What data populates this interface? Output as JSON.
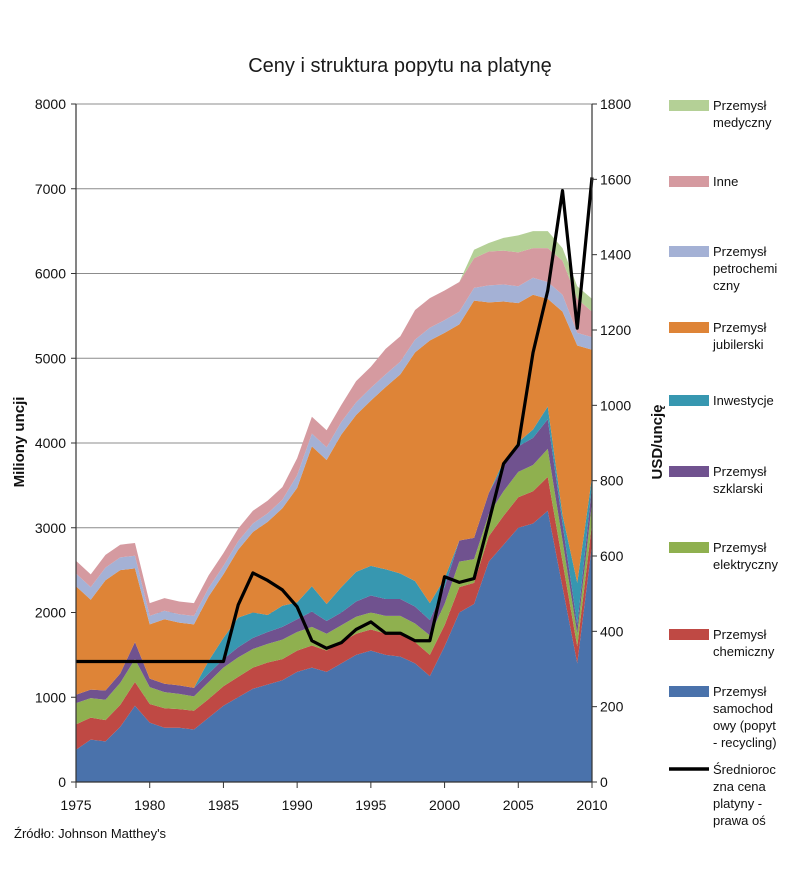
{
  "chart_data": {
    "type": "area",
    "title": "Ceny i struktura popytu na platynę",
    "ylabel_left": "Miliony uncji",
    "ylabel_right": "USD/uncję",
    "source": "Źródło: Johnson Matthey's",
    "ylim_left": [
      0,
      8000
    ],
    "ylim_right": [
      0,
      1800
    ],
    "yticks_left": [
      0,
      1000,
      2000,
      3000,
      4000,
      5000,
      6000,
      7000,
      8000
    ],
    "yticks_right": [
      0,
      200,
      400,
      600,
      800,
      1000,
      1200,
      1400,
      1600,
      1800
    ],
    "xlim": [
      1975,
      2010
    ],
    "xticks": [
      1975,
      1980,
      1985,
      1990,
      1995,
      2000,
      2005,
      2010
    ],
    "grid": true,
    "legend_position": "right",
    "x": [
      1975,
      1976,
      1977,
      1978,
      1979,
      1980,
      1981,
      1982,
      1983,
      1984,
      1985,
      1986,
      1987,
      1988,
      1989,
      1990,
      1991,
      1992,
      1993,
      1994,
      1995,
      1996,
      1997,
      1998,
      1999,
      2000,
      2001,
      2002,
      2003,
      2004,
      2005,
      2006,
      2007,
      2008,
      2009,
      2010
    ],
    "series": [
      {
        "name": "Przemysł samochodowy (popyt - recycling)",
        "color": "#4a72ab",
        "values": [
          380,
          500,
          480,
          650,
          900,
          700,
          640,
          640,
          620,
          760,
          900,
          1000,
          1100,
          1150,
          1200,
          1300,
          1350,
          1300,
          1400,
          1500,
          1550,
          1500,
          1480,
          1400,
          1250,
          1600,
          2000,
          2100,
          2600,
          2800,
          3000,
          3050,
          3200,
          2300,
          1400,
          2800
        ]
      },
      {
        "name": "Przemysł chemiczny",
        "color": "#bf4944",
        "values": [
          300,
          260,
          250,
          260,
          280,
          220,
          230,
          220,
          220,
          220,
          230,
          240,
          250,
          260,
          250,
          250,
          260,
          250,
          250,
          250,
          250,
          250,
          260,
          250,
          250,
          250,
          300,
          250,
          300,
          340,
          360,
          380,
          400,
          300,
          200,
          250
        ]
      },
      {
        "name": "Przemysł elektryczny",
        "color": "#8fb04f",
        "values": [
          250,
          230,
          240,
          260,
          270,
          200,
          190,
          180,
          170,
          200,
          220,
          230,
          220,
          220,
          230,
          220,
          220,
          200,
          200,
          200,
          200,
          210,
          220,
          220,
          230,
          250,
          300,
          280,
          260,
          290,
          300,
          310,
          330,
          250,
          150,
          250
        ]
      },
      {
        "name": "Przemysł szklarski",
        "color": "#70528f",
        "values": [
          100,
          100,
          110,
          110,
          200,
          100,
          100,
          100,
          100,
          100,
          100,
          120,
          130,
          140,
          150,
          150,
          180,
          150,
          150,
          180,
          200,
          200,
          200,
          200,
          180,
          200,
          250,
          250,
          250,
          300,
          300,
          320,
          350,
          200,
          100,
          200
        ]
      },
      {
        "name": "Inwestycje",
        "color": "#3797b0",
        "values": [
          0,
          0,
          0,
          0,
          0,
          0,
          0,
          0,
          0,
          150,
          250,
          350,
          300,
          200,
          250,
          200,
          300,
          200,
          300,
          350,
          350,
          350,
          300,
          300,
          200,
          100,
          0,
          0,
          0,
          50,
          50,
          100,
          150,
          100,
          500,
          100
        ]
      },
      {
        "name": "Przemysł jubilerski",
        "color": "#de8437",
        "values": [
          1280,
          1060,
          1300,
          1220,
          870,
          640,
          760,
          740,
          750,
          760,
          750,
          800,
          950,
          1100,
          1150,
          1350,
          1650,
          1700,
          1800,
          1850,
          1950,
          2150,
          2350,
          2700,
          3100,
          2900,
          2550,
          2800,
          2250,
          1890,
          1640,
          1590,
          1270,
          2400,
          2800,
          1500
        ]
      },
      {
        "name": "Przemysł petrochemiczny",
        "color": "#a4b1d5",
        "values": [
          150,
          150,
          150,
          150,
          150,
          100,
          100,
          100,
          100,
          100,
          100,
          100,
          100,
          100,
          100,
          150,
          150,
          150,
          150,
          150,
          150,
          150,
          150,
          150,
          150,
          150,
          150,
          150,
          200,
          200,
          200,
          200,
          200,
          200,
          150,
          150
        ]
      },
      {
        "name": "Inne",
        "color": "#d59aa0",
        "values": [
          150,
          150,
          150,
          150,
          150,
          150,
          150,
          150,
          150,
          150,
          150,
          150,
          150,
          150,
          150,
          200,
          200,
          200,
          200,
          250,
          250,
          300,
          300,
          350,
          350,
          350,
          350,
          350,
          400,
          400,
          400,
          350,
          400,
          400,
          400,
          300
        ]
      },
      {
        "name": "Przemysł medyczny",
        "color": "#b4d096",
        "values": [
          0,
          0,
          0,
          0,
          0,
          0,
          0,
          0,
          0,
          0,
          0,
          0,
          0,
          0,
          0,
          0,
          0,
          0,
          0,
          0,
          0,
          0,
          0,
          0,
          0,
          0,
          0,
          100,
          100,
          150,
          200,
          200,
          200,
          150,
          150,
          150
        ]
      }
    ],
    "price_line": {
      "name": "Średnioroczna cena platyny - prawa oś",
      "color": "#000000",
      "values": [
        320,
        320,
        320,
        320,
        320,
        320,
        320,
        320,
        320,
        320,
        320,
        470,
        555,
        535,
        510,
        465,
        375,
        355,
        370,
        405,
        425,
        395,
        395,
        375,
        375,
        545,
        530,
        540,
        690,
        845,
        895,
        1140,
        1305,
        1570,
        1205,
        1605
      ]
    }
  }
}
